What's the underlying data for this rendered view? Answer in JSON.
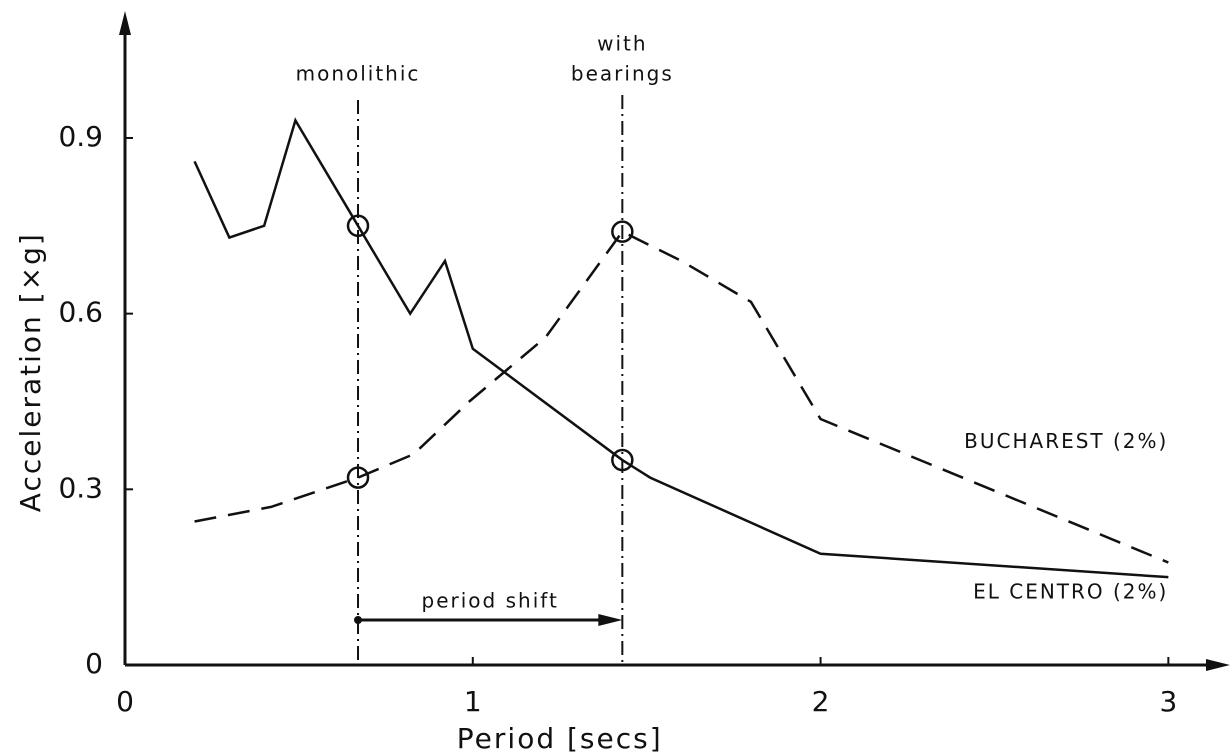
{
  "chart_data": {
    "type": "line",
    "x_label": "Period [secs]",
    "y_label": "Acceleration [×g]",
    "xlim": [
      0,
      3.16
    ],
    "ylim": [
      0,
      1.11
    ],
    "xticks": [
      0,
      1,
      2,
      3
    ],
    "yticks": [
      0,
      0.3,
      0.6,
      0.9
    ],
    "series": [
      {
        "name": "EL CENTRO (2%)",
        "color": "#111",
        "dash": "solid",
        "x": [
          0.2,
          0.3,
          0.4,
          0.49,
          0.67,
          0.82,
          0.92,
          1.0,
          1.43,
          1.51,
          2.0,
          3.0
        ],
        "values": [
          0.86,
          0.73,
          0.75,
          0.93,
          0.75,
          0.6,
          0.69,
          0.54,
          0.35,
          0.32,
          0.19,
          0.15
        ]
      },
      {
        "name": "BUCHAREST (2%)",
        "color": "#111",
        "dash": "dashed",
        "x": [
          0.2,
          0.42,
          0.67,
          0.83,
          0.99,
          1.21,
          1.43,
          1.6,
          1.8,
          2.0,
          3.0
        ],
        "values": [
          0.245,
          0.27,
          0.32,
          0.36,
          0.45,
          0.56,
          0.74,
          0.69,
          0.62,
          0.42,
          0.175
        ]
      }
    ],
    "markers": [
      {
        "label": [
          "monolithic"
        ],
        "x": 0.67
      },
      {
        "label": [
          "with",
          "bearings"
        ],
        "x": 1.43
      }
    ],
    "shift_label": "period shift"
  }
}
